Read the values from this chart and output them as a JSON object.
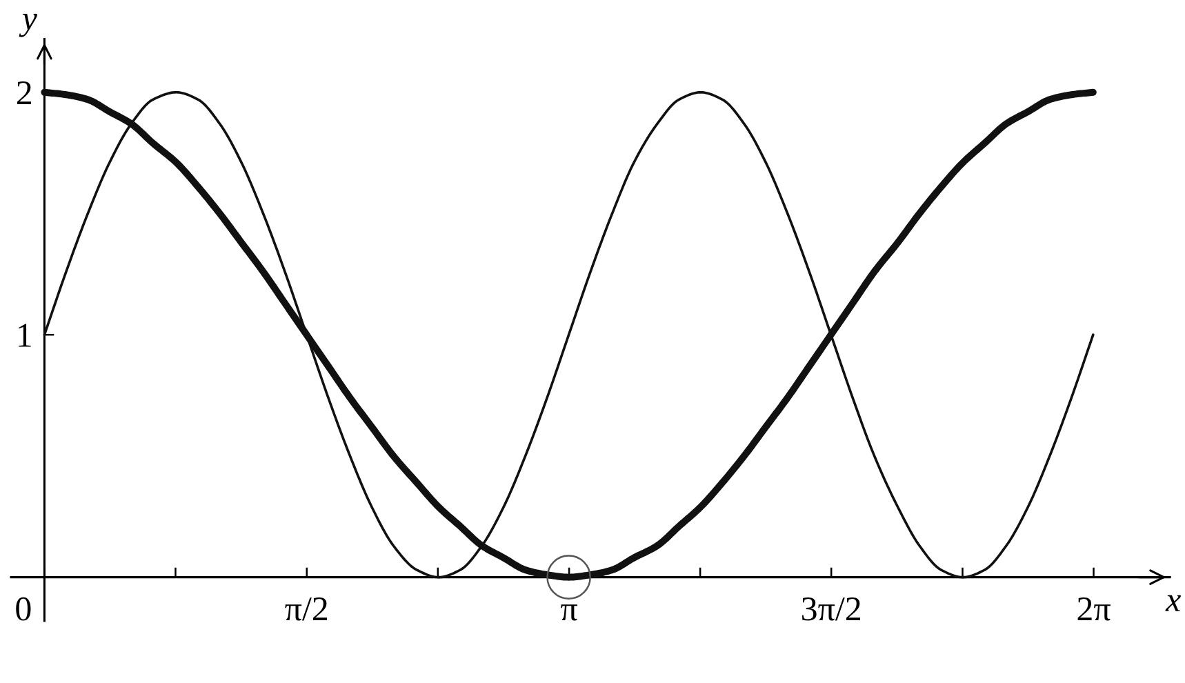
{
  "chart_data": {
    "type": "line",
    "xlabel": "x",
    "ylabel": "y",
    "xlim": [
      -0.2,
      6.74
    ],
    "ylim": [
      -0.18,
      2.22
    ],
    "xticks": [
      {
        "value": 0,
        "label": "0"
      },
      {
        "value": 0.785,
        "label": null
      },
      {
        "value": 1.571,
        "label": "π/2"
      },
      {
        "value": 2.356,
        "label": null
      },
      {
        "value": 3.142,
        "label": "π"
      },
      {
        "value": 3.927,
        "label": null
      },
      {
        "value": 4.712,
        "label": "3π/2"
      },
      {
        "value": 5.498,
        "label": null
      },
      {
        "value": 6.283,
        "label": "2π"
      }
    ],
    "yticks": [
      1,
      2
    ],
    "x": [
      0,
      0.13,
      0.26,
      0.39,
      0.52,
      0.65,
      0.79,
      0.92,
      1.05,
      1.18,
      1.31,
      1.44,
      1.57,
      1.7,
      1.83,
      1.96,
      2.09,
      2.23,
      2.36,
      2.49,
      2.62,
      2.75,
      2.88,
      3.01,
      3.14,
      3.27,
      3.4,
      3.53,
      3.67,
      3.8,
      3.93,
      4.06,
      4.19,
      4.32,
      4.45,
      4.58,
      4.71,
      4.84,
      4.97,
      5.11,
      5.24,
      5.37,
      5.5,
      5.63,
      5.76,
      5.89,
      6.02,
      6.15,
      6.28
    ],
    "series": [
      {
        "color": "#111111",
        "values": [
          2.0,
          1.99,
          1.97,
          1.92,
          1.87,
          1.79,
          1.71,
          1.61,
          1.5,
          1.38,
          1.26,
          1.13,
          1.0,
          0.87,
          0.74,
          0.62,
          0.5,
          0.39,
          0.29,
          0.21,
          0.13,
          0.08,
          0.03,
          0.01,
          0.0,
          0.01,
          0.03,
          0.08,
          0.13,
          0.21,
          0.29,
          0.39,
          0.5,
          0.62,
          0.74,
          0.87,
          1.0,
          1.13,
          1.26,
          1.38,
          1.5,
          1.61,
          1.71,
          1.79,
          1.87,
          1.92,
          1.97,
          1.99,
          2.0
        ]
      },
      {
        "color": "#111111",
        "values": [
          1.0,
          1.26,
          1.5,
          1.71,
          1.87,
          1.97,
          2.0,
          1.97,
          1.87,
          1.71,
          1.5,
          1.26,
          1.0,
          0.74,
          0.5,
          0.29,
          0.13,
          0.03,
          0.0,
          0.03,
          0.13,
          0.29,
          0.5,
          0.74,
          1.0,
          1.26,
          1.5,
          1.71,
          1.87,
          1.97,
          2.0,
          1.97,
          1.87,
          1.71,
          1.5,
          1.26,
          1.0,
          0.74,
          0.5,
          0.29,
          0.13,
          0.03,
          0.0,
          0.03,
          0.13,
          0.29,
          0.5,
          0.74,
          1.0
        ]
      },
      {
        "type": "scatter",
        "x": [
          3.14
        ],
        "values": [
          0
        ],
        "color": "#555555",
        "marker": "circle"
      }
    ]
  }
}
